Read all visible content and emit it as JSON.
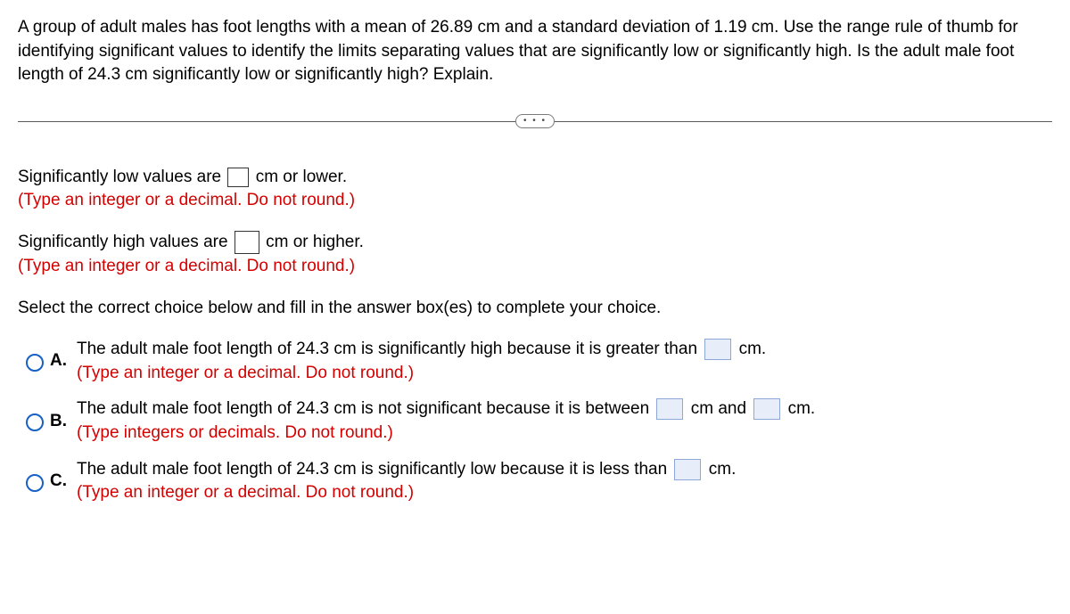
{
  "question": "A group of adult males has foot lengths with a mean of 26.89 cm and a standard deviation of 1.19 cm. Use the range rule of thumb for identifying significant values to identify the limits separating values that are significantly low or significantly high. Is the adult male foot length of 24.3 cm significantly low or significantly high? Explain.",
  "divider_dots": "• • •",
  "low": {
    "pre": "Significantly low values are",
    "post": "cm or lower.",
    "hint": "(Type an integer or a decimal. Do not round.)"
  },
  "high": {
    "pre": "Significantly high values are",
    "post": "cm or higher.",
    "hint": "(Type an integer or a decimal. Do not round.)"
  },
  "select_prompt": "Select the correct choice below and fill in the answer box(es) to complete your choice.",
  "choices": {
    "a": {
      "letter": "A.",
      "text_pre": "The adult male foot length of 24.3 cm is significantly high because it is greater than",
      "text_post": "cm.",
      "hint": "(Type an integer or a decimal. Do not round.)"
    },
    "b": {
      "letter": "B.",
      "text_pre": "The adult male foot length of 24.3 cm is not significant because it is between",
      "text_mid": "cm and",
      "text_post": "cm.",
      "hint": "(Type integers or decimals. Do not round.)"
    },
    "c": {
      "letter": "C.",
      "text_pre": "The adult male foot length of 24.3 cm is significantly low because it is less than",
      "text_post": "cm.",
      "hint": "(Type an integer or a decimal. Do not round.)"
    }
  },
  "colors": {
    "hint": "#d40000",
    "radio_border": "#1760c4",
    "shaded_bg": "#e8eef9",
    "shaded_border": "#8da8d6"
  }
}
